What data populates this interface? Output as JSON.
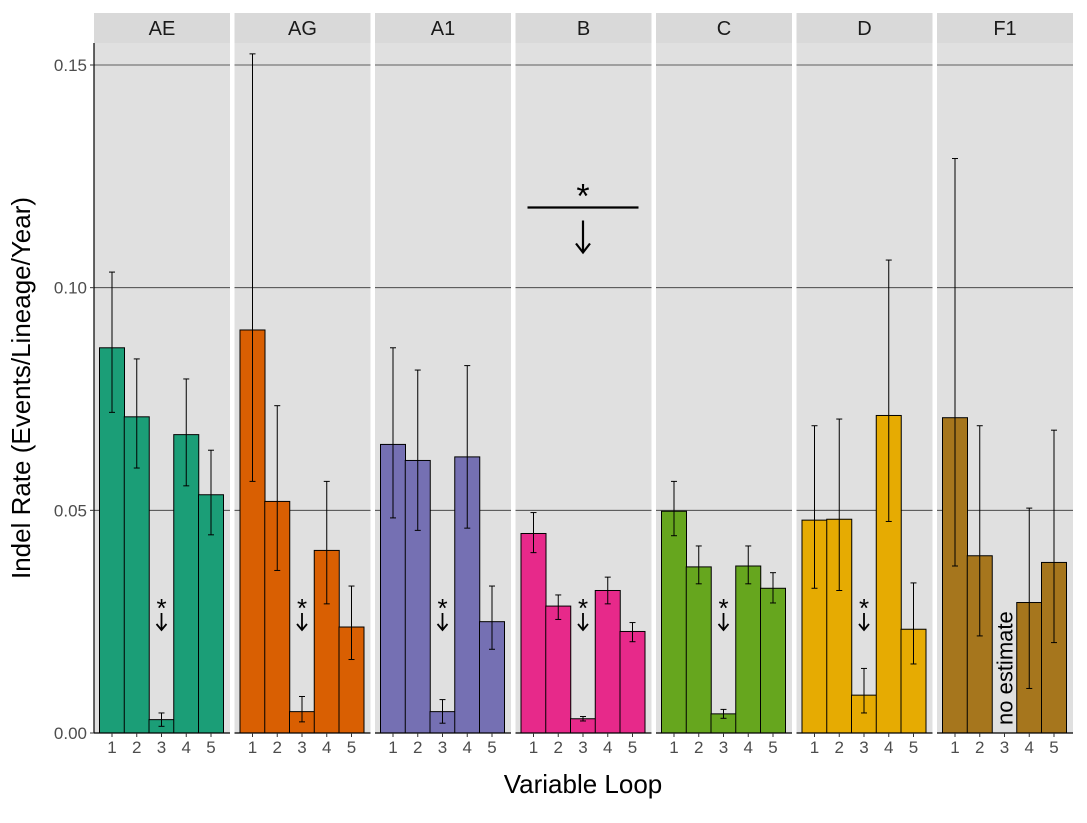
{
  "chart_data": {
    "type": "bar",
    "xlabel": "Variable Loop",
    "ylabel": "Indel Rate (Events/Lineage/Year)",
    "ylim": [
      0,
      0.155
    ],
    "yticks": [
      0.0,
      0.05,
      0.1,
      0.15
    ],
    "ytick_labels": [
      "0.00",
      "0.05",
      "0.10",
      "0.15"
    ],
    "categories": [
      "1",
      "2",
      "3",
      "4",
      "5"
    ],
    "facets": [
      {
        "name": "AE",
        "color": "#1b9e77",
        "values": [
          0.0865,
          0.071,
          0.003,
          0.067,
          0.0535
        ],
        "lower": [
          0.072,
          0.0595,
          0.0015,
          0.0555,
          0.0445
        ],
        "upper": [
          0.1035,
          0.084,
          0.0045,
          0.0795,
          0.0635
        ],
        "annotations": [
          {
            "cat": "3",
            "text": "*",
            "arrow": true
          }
        ]
      },
      {
        "name": "AG",
        "color": "#d95f02",
        "values": [
          0.0905,
          0.052,
          0.0048,
          0.041,
          0.0238
        ],
        "lower": [
          0.0565,
          0.0365,
          0.0025,
          0.029,
          0.0165
        ],
        "upper": [
          0.1525,
          0.0735,
          0.0082,
          0.0565,
          0.033
        ],
        "annotations": [
          {
            "cat": "3",
            "text": "*",
            "arrow": true
          }
        ]
      },
      {
        "name": "A1",
        "color": "#7570b3",
        "values": [
          0.0648,
          0.0612,
          0.0048,
          0.062,
          0.025
        ],
        "lower": [
          0.0483,
          0.0455,
          0.0022,
          0.046,
          0.0188
        ],
        "upper": [
          0.0865,
          0.0815,
          0.0075,
          0.0825,
          0.033
        ],
        "annotations": [
          {
            "cat": "3",
            "text": "*",
            "arrow": true
          }
        ]
      },
      {
        "name": "B",
        "color": "#e7298a",
        "values": [
          0.0448,
          0.0285,
          0.0032,
          0.032,
          0.0228
        ],
        "lower": [
          0.0405,
          0.0255,
          0.0027,
          0.029,
          0.0205
        ],
        "upper": [
          0.0495,
          0.031,
          0.0037,
          0.035,
          0.0248
        ],
        "annotations": [
          {
            "cat": "3",
            "text": "*",
            "arrow": true
          },
          {
            "text": "*",
            "arrow": true,
            "bracket": true,
            "from": "1",
            "to": "5",
            "y": 0.118
          }
        ]
      },
      {
        "name": "C",
        "color": "#66a61e",
        "values": [
          0.0498,
          0.0373,
          0.0043,
          0.0375,
          0.0325
        ],
        "lower": [
          0.0443,
          0.0335,
          0.0033,
          0.0335,
          0.0292
        ],
        "upper": [
          0.0565,
          0.042,
          0.0053,
          0.042,
          0.036
        ],
        "annotations": [
          {
            "cat": "3",
            "text": "*",
            "arrow": true
          }
        ]
      },
      {
        "name": "D",
        "color": "#e6ab02",
        "values": [
          0.0478,
          0.048,
          0.0085,
          0.0713,
          0.0233
        ],
        "lower": [
          0.0325,
          0.032,
          0.0045,
          0.0475,
          0.0155
        ],
        "upper": [
          0.069,
          0.0705,
          0.0145,
          0.1062,
          0.0337
        ],
        "annotations": [
          {
            "cat": "3",
            "text": "*",
            "arrow": true
          }
        ]
      },
      {
        "name": "F1",
        "color": "#a6761d",
        "values": [
          0.0708,
          0.0398,
          null,
          0.0293,
          0.0383
        ],
        "lower": [
          0.0375,
          0.0218,
          null,
          0.01,
          0.0203
        ],
        "upper": [
          0.129,
          0.069,
          null,
          0.0505,
          0.068
        ],
        "annotations": [
          {
            "cat": "3",
            "text": "no estimate",
            "rotate": true
          }
        ]
      }
    ],
    "grid": true,
    "legend": "none"
  }
}
